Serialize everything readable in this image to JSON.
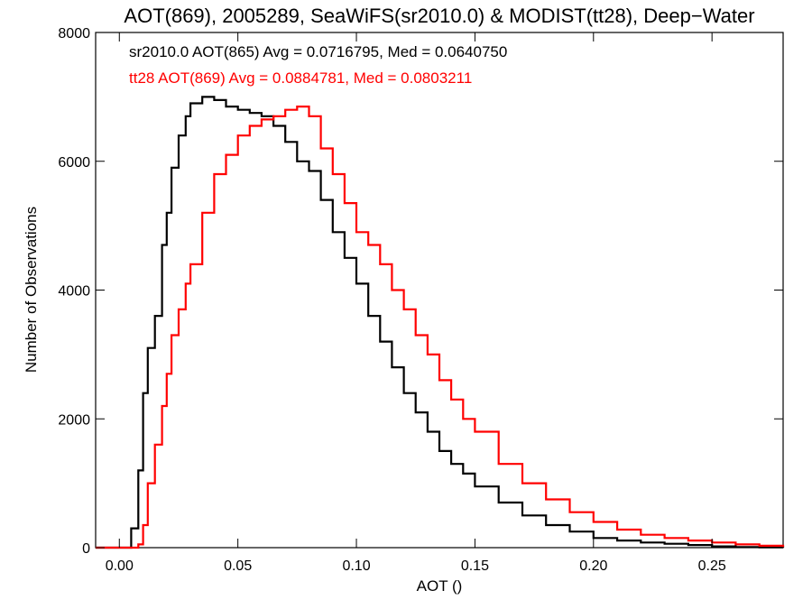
{
  "chart_data": {
    "type": "line",
    "title": "AOT(869), 2005289, SeaWiFS(sr2010.0) & MODIST(tt28), Deep−Water",
    "xlabel": "AOT ()",
    "ylabel": "Number of Observations",
    "xlim": [
      -0.01,
      0.28
    ],
    "ylim": [
      0,
      8000
    ],
    "x_ticks": [
      0.0,
      0.05,
      0.1,
      0.15,
      0.2,
      0.25
    ],
    "x_tick_labels": [
      "0.00",
      "0.05",
      "0.10",
      "0.15",
      "0.20",
      "0.25"
    ],
    "y_ticks": [
      0,
      2000,
      4000,
      6000,
      8000
    ],
    "y_tick_labels": [
      "0",
      "2000",
      "4000",
      "6000",
      "8000"
    ],
    "step": true,
    "annotations": [
      {
        "text": "sr2010.0 AOT(865) Avg = 0.0716795, Med = 0.0640750",
        "color": "#000000"
      },
      {
        "text": "tt28 AOT(869) Avg = 0.0884781, Med = 0.0803211",
        "color": "#ff0000"
      }
    ],
    "series": [
      {
        "color": "#000000",
        "x": [
          -0.01,
          0.0,
          0.005,
          0.008,
          0.01,
          0.012,
          0.015,
          0.018,
          0.02,
          0.022,
          0.025,
          0.028,
          0.03,
          0.035,
          0.04,
          0.045,
          0.05,
          0.055,
          0.06,
          0.065,
          0.07,
          0.075,
          0.08,
          0.085,
          0.09,
          0.095,
          0.1,
          0.105,
          0.11,
          0.115,
          0.12,
          0.125,
          0.13,
          0.135,
          0.14,
          0.145,
          0.15,
          0.16,
          0.17,
          0.18,
          0.19,
          0.2,
          0.21,
          0.22,
          0.23,
          0.24,
          0.25,
          0.26,
          0.27,
          0.28
        ],
        "y": [
          0,
          0,
          300,
          1200,
          2400,
          3100,
          3600,
          4700,
          5200,
          5900,
          6400,
          6700,
          6900,
          7000,
          6950,
          6850,
          6800,
          6750,
          6700,
          6550,
          6300,
          6000,
          5850,
          5400,
          4900,
          4500,
          4100,
          3600,
          3200,
          2800,
          2400,
          2100,
          1800,
          1500,
          1300,
          1150,
          950,
          700,
          500,
          350,
          250,
          150,
          110,
          80,
          60,
          40,
          20,
          10,
          5,
          0
        ]
      },
      {
        "color": "#ff0000",
        "x": [
          -0.01,
          0.0,
          0.005,
          0.008,
          0.01,
          0.012,
          0.015,
          0.018,
          0.02,
          0.022,
          0.025,
          0.028,
          0.03,
          0.035,
          0.04,
          0.045,
          0.05,
          0.055,
          0.06,
          0.065,
          0.07,
          0.075,
          0.08,
          0.085,
          0.09,
          0.095,
          0.1,
          0.105,
          0.11,
          0.115,
          0.12,
          0.125,
          0.13,
          0.135,
          0.14,
          0.145,
          0.15,
          0.16,
          0.17,
          0.18,
          0.19,
          0.2,
          0.21,
          0.22,
          0.23,
          0.24,
          0.25,
          0.26,
          0.27,
          0.28
        ],
        "y": [
          0,
          0,
          0,
          50,
          350,
          1000,
          1600,
          2200,
          2700,
          3300,
          3700,
          4100,
          4400,
          5200,
          5800,
          6100,
          6400,
          6550,
          6650,
          6700,
          6800,
          6850,
          6700,
          6200,
          5800,
          5350,
          4900,
          4700,
          4400,
          4000,
          3700,
          3300,
          3000,
          2600,
          2300,
          2000,
          1800,
          1300,
          1000,
          750,
          550,
          400,
          280,
          200,
          150,
          110,
          80,
          50,
          30,
          10
        ]
      }
    ]
  }
}
